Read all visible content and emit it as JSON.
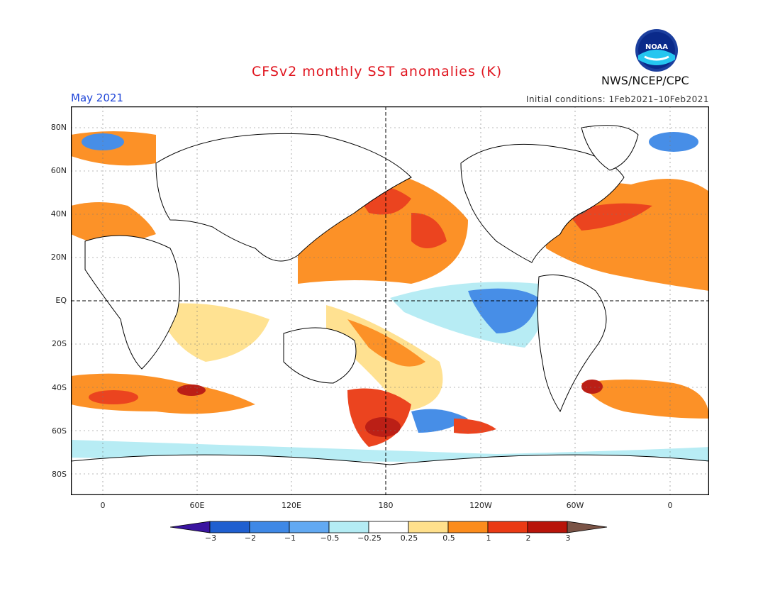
{
  "title": "CFSv2 monthly SST anomalies (K)",
  "month": "May 2021",
  "initial_conditions": "Initial conditions: 1Feb2021–10Feb2021",
  "agency": "NWS/NCEP/CPC",
  "logo_text": "NOAA",
  "lat_labels": [
    "80N",
    "60N",
    "40N",
    "20N",
    "EQ",
    "20S",
    "40S",
    "60S",
    "80S"
  ],
  "lon_labels": [
    "0",
    "60E",
    "120E",
    "180",
    "120W",
    "60W",
    "0"
  ],
  "colorbar": {
    "labels": [
      "−3",
      "−2",
      "−1",
      "−0.5",
      "−0.25",
      "0.25",
      "0.5",
      "1",
      "2",
      "3"
    ],
    "colors": [
      "#3a14a0",
      "#1f5fd0",
      "#3e88e6",
      "#62a9f2",
      "#b4ecf4",
      "#ffffff",
      "#ffe08c",
      "#fc8c1c",
      "#ea3a14",
      "#b8140a",
      "#7a5346"
    ]
  }
}
